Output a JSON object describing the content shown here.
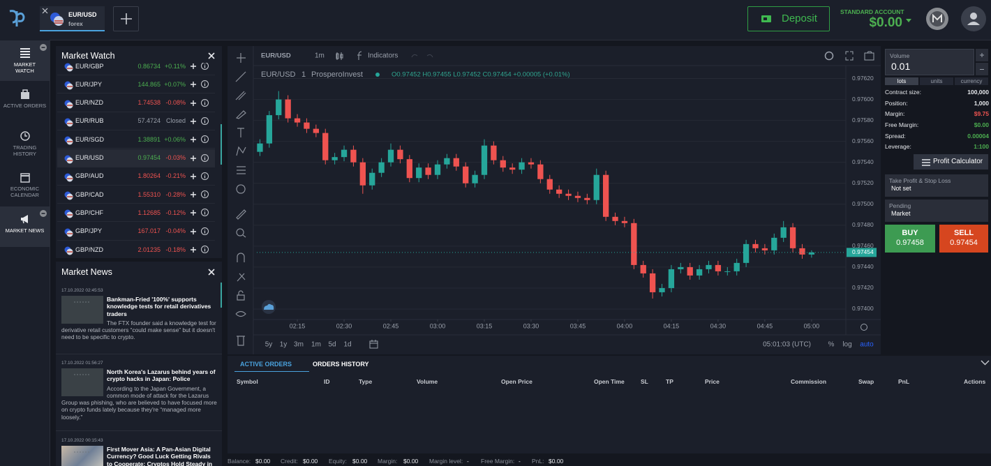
{
  "header": {
    "tab_symbol": "EUR/USD",
    "tab_type": "forex",
    "deposit": "Deposit",
    "account_type": "STANDARD ACCOUNT",
    "balance": "$0.00"
  },
  "nav": {
    "items": [
      {
        "label": "MARKET WATCH",
        "active": true
      },
      {
        "label": "ACTIVE ORDERS",
        "active": false
      },
      {
        "label": "TRADING HISTORY",
        "active": false
      },
      {
        "label": "ECONOMIC CALENDAR",
        "active": false
      },
      {
        "label": "MARKET NEWS",
        "active": true
      }
    ]
  },
  "market_watch": {
    "title": "Market Watch",
    "selected_row": 5,
    "rows": [
      {
        "symbol": "EUR/GBP",
        "price": "0.86734",
        "change": "+0.11%",
        "price_color": "#4caf50",
        "change_color": "#4caf50"
      },
      {
        "symbol": "EUR/JPY",
        "price": "144.865",
        "change": "+0.07%",
        "price_color": "#4caf50",
        "change_color": "#4caf50"
      },
      {
        "symbol": "EUR/NZD",
        "price": "1.74538",
        "change": "-0.08%",
        "price_color": "#ef5350",
        "change_color": "#ef5350"
      },
      {
        "symbol": "EUR/RUB",
        "price": "57.4724",
        "change": "Closed",
        "price_color": "#9aa0ab",
        "change_color": "#9aa0ab"
      },
      {
        "symbol": "EUR/SGD",
        "price": "1.38891",
        "change": "+0.06%",
        "price_color": "#4caf50",
        "change_color": "#4caf50"
      },
      {
        "symbol": "EUR/USD",
        "price": "0.97454",
        "change": "-0.03%",
        "price_color": "#4caf50",
        "change_color": "#ef5350"
      },
      {
        "symbol": "GBP/AUD",
        "price": "1.80264",
        "change": "-0.21%",
        "price_color": "#ef5350",
        "change_color": "#ef5350"
      },
      {
        "symbol": "GBP/CAD",
        "price": "1.55310",
        "change": "-0.28%",
        "price_color": "#ef5350",
        "change_color": "#ef5350"
      },
      {
        "symbol": "GBP/CHF",
        "price": "1.12685",
        "change": "-0.12%",
        "price_color": "#ef5350",
        "change_color": "#ef5350"
      },
      {
        "symbol": "GBP/JPY",
        "price": "167.017",
        "change": "-0.04%",
        "price_color": "#ef5350",
        "change_color": "#ef5350"
      },
      {
        "symbol": "GBP/NZD",
        "price": "2.01235",
        "change": "-0.18%",
        "price_color": "#ef5350",
        "change_color": "#ef5350"
      }
    ]
  },
  "market_news": {
    "title": "Market News",
    "items": [
      {
        "date": "17.10.2022 02:45:53",
        "headline": "Bankman-Fried '100%' supports knowledge tests for retail derivatives traders",
        "summary": "The FTX founder said a knowledge test for derivative retail customers “could make sense” but it doesn't need to be specific to crypto."
      },
      {
        "date": "17.10.2022 01:56:27",
        "headline": "North Korea's Lazarus behind years of crypto hacks in Japan: Police",
        "summary": "According to the Japan Government, a common mode of attack for the Lazarus Group was phishing, who are believed to have focused more on crypto funds lately because they're “managed more loosely.”"
      },
      {
        "date": "17.10.2022 00:15:43",
        "headline": "First Mover Asia: A Pan-Asian Digital Currency? Good Luck Getting Rivals to Cooperate; Cryptos Hold Steady in",
        "summary": ""
      }
    ]
  },
  "chart": {
    "type": "candlestick",
    "toolbar_symbol": "EUR/USD",
    "toolbar_interval": "1m",
    "indicators": "Indicators",
    "legend_symbol": "EUR/USD",
    "legend_interval": "1",
    "legend_source": "ProsperoInvest",
    "ohlc": "O0.97452 H0.97455 L0.97452 C0.97454 +0.00005 (+0.01%)",
    "ylim": [
      0.9739,
      0.97631
    ],
    "yticks": [
      {
        "value": 0.9762,
        "label": "0.97620"
      },
      {
        "value": 0.976,
        "label": "0.97600"
      },
      {
        "value": 0.9758,
        "label": "0.97580"
      },
      {
        "value": 0.9756,
        "label": "0.97560"
      },
      {
        "value": 0.9754,
        "label": "0.97540"
      },
      {
        "value": 0.9752,
        "label": "0.97520"
      },
      {
        "value": 0.975,
        "label": "0.97500"
      },
      {
        "value": 0.9748,
        "label": "0.97480"
      },
      {
        "value": 0.9746,
        "label": "0.97460"
      },
      {
        "value": 0.9744,
        "label": "0.97440"
      },
      {
        "value": 0.9742,
        "label": "0.97420"
      },
      {
        "value": 0.974,
        "label": "0.97400"
      }
    ],
    "xlim": [
      "02:02",
      "05:11"
    ],
    "xticks": [
      "02:15",
      "02:30",
      "02:45",
      "03:00",
      "03:15",
      "03:30",
      "03:45",
      "04:00",
      "04:15",
      "04:30",
      "04:45",
      "05:00"
    ],
    "grid": true,
    "up_color": "#26a69a",
    "down_color": "#ef5350",
    "candles": {
      "x": [
        "02:03",
        "02:06",
        "02:09",
        "02:12",
        "02:15",
        "02:18",
        "02:21",
        "02:24",
        "02:27",
        "02:30",
        "02:33",
        "02:36",
        "02:39",
        "02:42",
        "02:45",
        "02:48",
        "02:51",
        "02:54",
        "02:57",
        "03:00",
        "03:03",
        "03:06",
        "03:09",
        "03:12",
        "03:15",
        "03:18",
        "03:21",
        "03:24",
        "03:27",
        "03:30",
        "03:33",
        "03:36",
        "03:39",
        "03:42",
        "03:45",
        "03:48",
        "03:51",
        "03:54",
        "03:57",
        "04:00",
        "04:03",
        "04:06",
        "04:09",
        "04:12",
        "04:15",
        "04:18",
        "04:21",
        "04:24",
        "04:27",
        "04:30",
        "04:33",
        "04:36",
        "04:39",
        "04:42",
        "04:45",
        "04:48",
        "04:51",
        "04:54",
        "04:57",
        "05:00"
      ],
      "open": [
        0.9755,
        0.97558,
        0.97585,
        0.976,
        0.97582,
        0.97578,
        0.97572,
        0.97568,
        0.97542,
        0.97545,
        0.97552,
        0.9754,
        0.97518,
        0.9753,
        0.9754,
        0.97552,
        0.97543,
        0.97525,
        0.97535,
        0.97528,
        0.97538,
        0.97544,
        0.97536,
        0.9752,
        0.97528,
        0.97556,
        0.97542,
        0.97535,
        0.97533,
        0.9754,
        0.97538,
        0.97524,
        0.97514,
        0.9751,
        0.97508,
        0.97506,
        0.97504,
        0.97528,
        0.97488,
        0.97484,
        0.97482,
        0.97442,
        0.97434,
        0.97416,
        0.9742,
        0.97438,
        0.9744,
        0.97432,
        0.97438,
        0.97442,
        0.97436,
        0.97436,
        0.97444,
        0.97462,
        0.97458,
        0.97456,
        0.97468,
        0.97478,
        0.97458,
        0.97452
      ],
      "high": [
        0.97562,
        0.97589,
        0.97608,
        0.97604,
        0.97586,
        0.97582,
        0.97576,
        0.97572,
        0.97549,
        0.97556,
        0.97556,
        0.97544,
        0.97534,
        0.97544,
        0.97558,
        0.97556,
        0.97547,
        0.97539,
        0.97539,
        0.97542,
        0.97548,
        0.97548,
        0.9754,
        0.97532,
        0.97562,
        0.9756,
        0.97546,
        0.97539,
        0.97544,
        0.97544,
        0.97542,
        0.97528,
        0.97518,
        0.97514,
        0.97512,
        0.9751,
        0.97534,
        0.97532,
        0.97492,
        0.97488,
        0.97486,
        0.97446,
        0.97438,
        0.97424,
        0.97442,
        0.97444,
        0.97444,
        0.97442,
        0.97446,
        0.97446,
        0.9744,
        0.97448,
        0.97466,
        0.97466,
        0.97462,
        0.97472,
        0.97484,
        0.97482,
        0.97462,
        0.97456
      ],
      "low": [
        0.97546,
        0.97554,
        0.97581,
        0.97578,
        0.97574,
        0.97568,
        0.97564,
        0.97538,
        0.97538,
        0.97541,
        0.97536,
        0.9751,
        0.97514,
        0.97526,
        0.97536,
        0.97539,
        0.97521,
        0.97521,
        0.97524,
        0.97524,
        0.97534,
        0.97532,
        0.97516,
        0.97516,
        0.97524,
        0.97538,
        0.97531,
        0.97529,
        0.97529,
        0.97534,
        0.9752,
        0.9751,
        0.97506,
        0.97504,
        0.97502,
        0.975,
        0.975,
        0.97484,
        0.9748,
        0.97478,
        0.97438,
        0.9743,
        0.9741,
        0.97412,
        0.97416,
        0.97434,
        0.97428,
        0.97428,
        0.97434,
        0.97432,
        0.97432,
        0.97432,
        0.9744,
        0.97454,
        0.97452,
        0.97452,
        0.97464,
        0.97454,
        0.97448,
        0.97449
      ],
      "close": [
        0.97558,
        0.97585,
        0.976,
        0.97582,
        0.97578,
        0.97572,
        0.97568,
        0.97542,
        0.97545,
        0.97552,
        0.9754,
        0.97518,
        0.9753,
        0.9754,
        0.97552,
        0.97543,
        0.97525,
        0.97535,
        0.97528,
        0.97538,
        0.97544,
        0.97536,
        0.9752,
        0.97528,
        0.97556,
        0.97542,
        0.97535,
        0.97533,
        0.9754,
        0.97538,
        0.97524,
        0.97514,
        0.9751,
        0.97508,
        0.97506,
        0.97504,
        0.97528,
        0.97488,
        0.97484,
        0.97482,
        0.97442,
        0.97434,
        0.97416,
        0.9742,
        0.97438,
        0.9744,
        0.97432,
        0.97438,
        0.97442,
        0.97436,
        0.97436,
        0.97444,
        0.97462,
        0.97458,
        0.97456,
        0.97468,
        0.97478,
        0.97458,
        0.97452,
        0.97454
      ]
    },
    "last_price": {
      "value": 0.97454,
      "label": "0.97454"
    },
    "ranges": [
      "5y",
      "1y",
      "3m",
      "1m",
      "5d",
      "1d"
    ],
    "clock": "05:01:03 (UTC)",
    "scale_options": [
      "%",
      "log",
      "auto"
    ],
    "active_scale": 2
  },
  "order_panel": {
    "volume_label": "Volume",
    "volume": "0.01",
    "units": [
      "lots",
      "units",
      "currency"
    ],
    "active_unit": 0,
    "stats": [
      {
        "label": "Contract size:",
        "value": "100,000",
        "color": "#e6e8ec"
      },
      {
        "label": "Position:",
        "value": "1,000",
        "color": "#e6e8ec"
      },
      {
        "label": "Margin:",
        "value": "$9.75",
        "color": "#ef5350"
      },
      {
        "label": "Free Margin:",
        "value": "$0.00",
        "color": "#4caf50"
      },
      {
        "label": "Spread:",
        "value": "0.00004",
        "color": "#4caf50"
      },
      {
        "label": "Leverage:",
        "value": "1:100",
        "color": "#4caf50"
      }
    ],
    "profit_calculator": "Profit Calculator",
    "tp_sl_label": "Take Profit & Stop Loss",
    "tp_sl_value": "Not set",
    "pending_label": "Pending",
    "pending_value": "Market",
    "buy_label": "BUY",
    "buy_price": "0.97458",
    "sell_label": "SELL",
    "sell_price": "0.97454"
  },
  "orders": {
    "tabs": [
      "ACTIVE ORDERS",
      "ORDERS HISTORY"
    ],
    "active_tab": 0,
    "columns": [
      "Symbol",
      "ID",
      "Type",
      "Volume",
      "Open Price",
      "Open Time",
      "SL",
      "TP",
      "Price",
      "Commission",
      "Swap",
      "PnL",
      "Actions"
    ]
  },
  "footer": [
    {
      "label": "Balance:",
      "value": "$0.00"
    },
    {
      "label": "Credit:",
      "value": "$0.00"
    },
    {
      "label": "Equity:",
      "value": "$0.00"
    },
    {
      "label": "Margin:",
      "value": "$0.00"
    },
    {
      "label": "Margin level:",
      "value": "-"
    },
    {
      "label": "Free Margin:",
      "value": "-"
    },
    {
      "label": "PnL:",
      "value": "$0.00"
    }
  ]
}
